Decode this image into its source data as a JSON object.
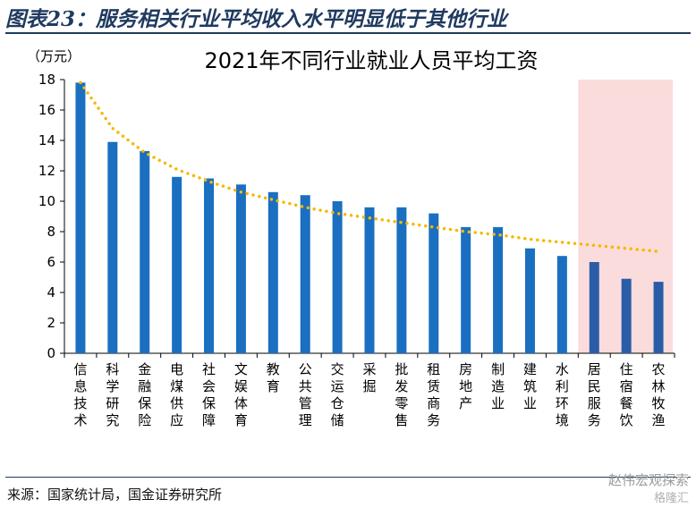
{
  "figure": {
    "title": "图表23：服务相关行业平均收入水平明显低于其他行业",
    "source": "来源：国家统计局，国金证券研究所",
    "watermark": "赵伟宏观探索",
    "watermark2": "格隆汇"
  },
  "chart_data": {
    "type": "bar",
    "title": "2021年不同行业就业人员平均工资",
    "ylabel": "（万元）",
    "ylim": [
      0,
      18
    ],
    "yticks": [
      "0",
      "2",
      "4",
      "6",
      "8",
      "10",
      "12",
      "14",
      "16",
      "18"
    ],
    "categories": [
      "信息技术",
      "科学研究",
      "金融保险",
      "电煤供应",
      "社会保障",
      "文娱体育",
      "教育",
      "公共管理",
      "交运仓储",
      "采掘",
      "批发零售",
      "租赁商务",
      "房地产",
      "制造业",
      "建筑业",
      "水利环境",
      "居民服务",
      "住宿餐饮",
      "农林牧渔"
    ],
    "values": [
      17.8,
      13.9,
      13.3,
      11.6,
      11.5,
      11.1,
      10.6,
      10.4,
      10.0,
      9.6,
      9.6,
      9.2,
      8.3,
      8.3,
      6.9,
      6.4,
      6.0,
      4.9,
      4.7
    ],
    "trend": [
      17.8,
      14.8,
      13.2,
      12.1,
      11.3,
      10.6,
      10.1,
      9.6,
      9.2,
      8.9,
      8.6,
      8.3,
      8.0,
      7.8,
      7.5,
      7.3,
      7.1,
      6.9,
      6.7
    ],
    "highlight_range": [
      "居民服务",
      "农林牧渔"
    ],
    "colors": {
      "bar": "#1a6fc0",
      "bar_highlight": "#2a5da8",
      "trend": "#f5b800",
      "highlight_bg": "#fbdcdc",
      "axis": "#000000"
    }
  }
}
